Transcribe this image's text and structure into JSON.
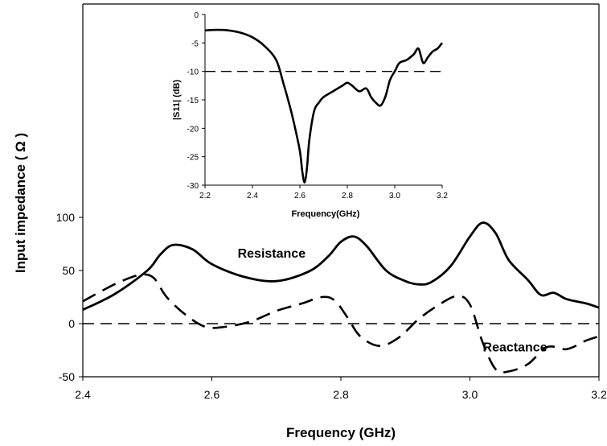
{
  "chart_data": [
    {
      "type": "line",
      "xlabel": "Frequency (GHz)",
      "ylabel": "Input impedance ( Ω )",
      "xlim": [
        2.4,
        3.2
      ],
      "ylim": [
        -50,
        100
      ],
      "xticks": [
        2.4,
        2.6,
        2.8,
        3.0,
        3.2
      ],
      "xtick_labels": [
        "2.4",
        "2.6",
        "2.8",
        "3.0",
        "3.2"
      ],
      "yticks": [
        -50,
        0,
        50,
        100
      ],
      "ytick_labels": [
        "-50",
        "0",
        "50",
        "100"
      ],
      "reference_line": 0,
      "series": [
        {
          "name": "Resistance",
          "style": "solid",
          "x": [
            2.4,
            2.45,
            2.5,
            2.52,
            2.54,
            2.57,
            2.6,
            2.65,
            2.7,
            2.75,
            2.78,
            2.8,
            2.82,
            2.84,
            2.87,
            2.9,
            2.92,
            2.94,
            2.97,
            3.0,
            3.02,
            3.04,
            3.06,
            3.09,
            3.11,
            3.13,
            3.15,
            3.18,
            3.2
          ],
          "values": [
            13,
            28,
            50,
            65,
            74,
            70,
            56,
            44,
            40,
            49,
            63,
            77,
            82,
            73,
            50,
            40,
            37,
            39,
            54,
            82,
            95,
            85,
            60,
            41,
            27,
            29,
            23,
            19,
            15
          ]
        },
        {
          "name": "Reactance",
          "style": "dashed",
          "x": [
            2.4,
            2.43,
            2.46,
            2.49,
            2.51,
            2.53,
            2.56,
            2.59,
            2.62,
            2.66,
            2.7,
            2.74,
            2.77,
            2.79,
            2.81,
            2.83,
            2.86,
            2.89,
            2.92,
            2.95,
            2.98,
            3.0,
            3.02,
            3.04,
            3.06,
            3.09,
            3.12,
            3.15,
            3.18,
            3.2
          ],
          "values": [
            21,
            31,
            40,
            46,
            43,
            25,
            8,
            -3,
            -3,
            2,
            12,
            19,
            25,
            22,
            6,
            -12,
            -21,
            -13,
            4,
            17,
            26,
            18,
            -18,
            -43,
            -45,
            -38,
            -22,
            -24,
            -16,
            -12
          ]
        }
      ],
      "annotations": [
        {
          "text": "Resistance",
          "x": 2.64,
          "y": 62
        },
        {
          "text": "Reactance",
          "x": 3.02,
          "y": -26
        }
      ]
    },
    {
      "type": "line",
      "xlabel": "Frequency(GHz)",
      "ylabel": "|S11| (dB)",
      "xlim": [
        2.2,
        3.2
      ],
      "ylim": [
        -30,
        0
      ],
      "xticks": [
        2.2,
        2.4,
        2.6,
        2.8,
        3.0,
        3.2
      ],
      "xtick_labels": [
        "2.2",
        "2.4",
        "2.6",
        "2.8",
        "3.0",
        "3.2"
      ],
      "yticks": [
        0,
        -5,
        -10,
        -15,
        -20,
        -25,
        -30
      ],
      "ytick_labels": [
        "0",
        "-5",
        "-10",
        "-15",
        "-20",
        "-25",
        "-30"
      ],
      "reference_line": -10,
      "series": [
        {
          "style": "solid",
          "x": [
            2.2,
            2.25,
            2.3,
            2.35,
            2.4,
            2.45,
            2.5,
            2.53,
            2.56,
            2.58,
            2.6,
            2.61,
            2.62,
            2.63,
            2.64,
            2.66,
            2.68,
            2.7,
            2.74,
            2.78,
            2.8,
            2.82,
            2.85,
            2.88,
            2.9,
            2.92,
            2.94,
            2.96,
            2.98,
            3.0,
            3.02,
            3.05,
            3.08,
            3.1,
            3.12,
            3.14,
            3.16,
            3.18,
            3.2
          ],
          "values": [
            -2.8,
            -2.7,
            -2.8,
            -3.2,
            -4.0,
            -5.5,
            -8.0,
            -12.0,
            -16.5,
            -20.0,
            -24.0,
            -27.5,
            -29.5,
            -27.0,
            -22.0,
            -17.0,
            -15.5,
            -14.5,
            -13.5,
            -12.5,
            -12.0,
            -12.5,
            -13.5,
            -13.0,
            -14.5,
            -15.5,
            -16.0,
            -14.5,
            -11.5,
            -10.0,
            -8.5,
            -8.0,
            -7.0,
            -6.0,
            -8.5,
            -7.5,
            -6.5,
            -6.0,
            -5.0
          ]
        }
      ]
    }
  ]
}
